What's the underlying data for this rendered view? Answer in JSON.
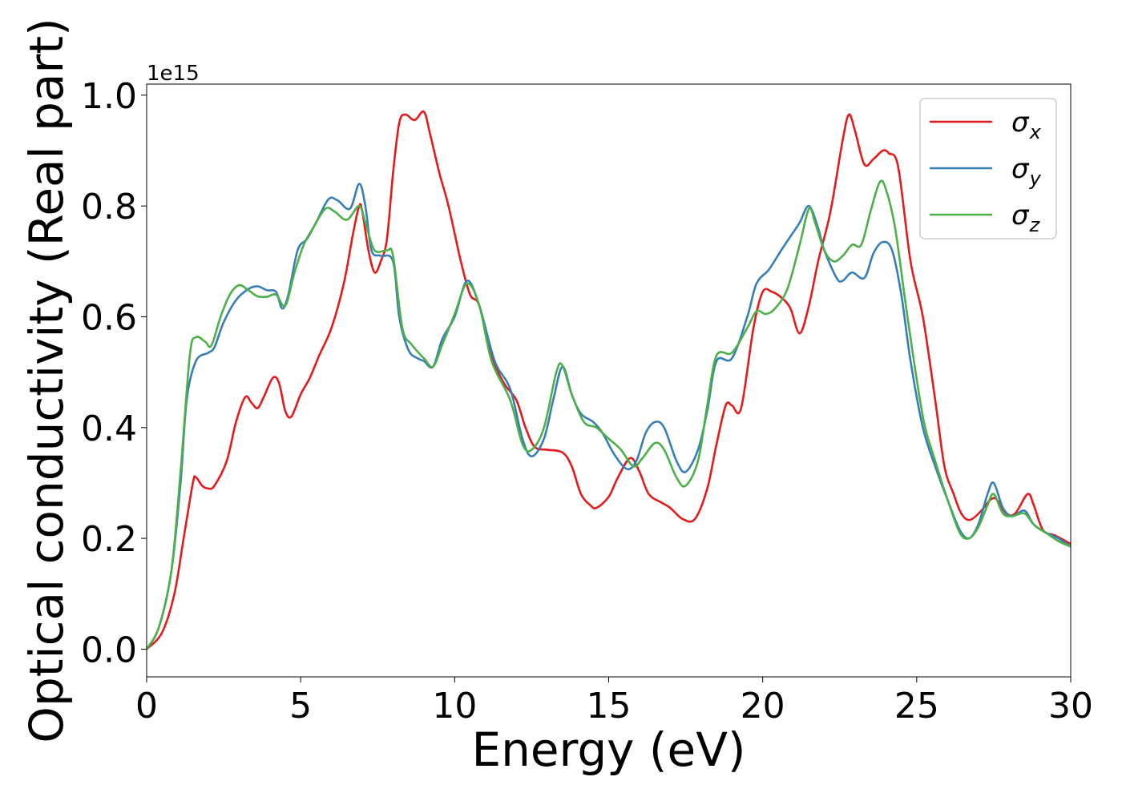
{
  "chart_data": {
    "type": "line",
    "xlabel": "Energy (eV)",
    "ylabel": "Optical conductivity (Real part)",
    "y_offset_label": "1e15",
    "xlim": [
      0,
      30
    ],
    "ylim": [
      -0.05,
      1.02
    ],
    "xticks": [
      0,
      5,
      10,
      15,
      20,
      25,
      30
    ],
    "yticks": [
      0.0,
      0.2,
      0.4,
      0.6,
      0.8,
      1.0
    ],
    "xtick_labels": [
      "0",
      "5",
      "10",
      "15",
      "20",
      "25",
      "30"
    ],
    "ytick_labels": [
      "0.0",
      "0.2",
      "0.4",
      "0.6",
      "0.8",
      "1.0"
    ],
    "grid": false,
    "legend_position": "top-right",
    "series": [
      {
        "name": "σ_x",
        "legend_symbol": "σ",
        "legend_sub": "x",
        "color": "#e41a1c",
        "points": [
          [
            0,
            0
          ],
          [
            0.5,
            0.03
          ],
          [
            0.9,
            0.1
          ],
          [
            1.2,
            0.2
          ],
          [
            1.5,
            0.3
          ],
          [
            1.6,
            0.31
          ],
          [
            1.8,
            0.295
          ],
          [
            2.0,
            0.29
          ],
          [
            2.2,
            0.295
          ],
          [
            2.6,
            0.34
          ],
          [
            2.9,
            0.41
          ],
          [
            3.2,
            0.455
          ],
          [
            3.4,
            0.445
          ],
          [
            3.6,
            0.435
          ],
          [
            3.8,
            0.455
          ],
          [
            4.1,
            0.49
          ],
          [
            4.3,
            0.48
          ],
          [
            4.5,
            0.43
          ],
          [
            4.7,
            0.42
          ],
          [
            5.0,
            0.46
          ],
          [
            5.3,
            0.49
          ],
          [
            5.6,
            0.53
          ],
          [
            6.0,
            0.58
          ],
          [
            6.4,
            0.66
          ],
          [
            6.7,
            0.75
          ],
          [
            6.9,
            0.8
          ],
          [
            7.0,
            0.79
          ],
          [
            7.2,
            0.72
          ],
          [
            7.4,
            0.68
          ],
          [
            7.6,
            0.7
          ],
          [
            7.8,
            0.74
          ],
          [
            8.0,
            0.86
          ],
          [
            8.2,
            0.95
          ],
          [
            8.4,
            0.965
          ],
          [
            8.7,
            0.955
          ],
          [
            9.0,
            0.97
          ],
          [
            9.2,
            0.93
          ],
          [
            9.5,
            0.86
          ],
          [
            9.8,
            0.8
          ],
          [
            10.2,
            0.7
          ],
          [
            10.5,
            0.64
          ],
          [
            10.8,
            0.62
          ],
          [
            11.2,
            0.53
          ],
          [
            11.6,
            0.48
          ],
          [
            12.0,
            0.45
          ],
          [
            12.3,
            0.4
          ],
          [
            12.6,
            0.365
          ],
          [
            13.0,
            0.36
          ],
          [
            13.5,
            0.355
          ],
          [
            13.8,
            0.33
          ],
          [
            14.1,
            0.28
          ],
          [
            14.4,
            0.26
          ],
          [
            14.6,
            0.255
          ],
          [
            15.0,
            0.275
          ],
          [
            15.3,
            0.31
          ],
          [
            15.7,
            0.345
          ],
          [
            16.0,
            0.32
          ],
          [
            16.3,
            0.28
          ],
          [
            16.7,
            0.265
          ],
          [
            17.0,
            0.255
          ],
          [
            17.4,
            0.235
          ],
          [
            17.8,
            0.235
          ],
          [
            18.2,
            0.29
          ],
          [
            18.5,
            0.37
          ],
          [
            18.8,
            0.44
          ],
          [
            19.0,
            0.44
          ],
          [
            19.3,
            0.435
          ],
          [
            19.7,
            0.58
          ],
          [
            20.0,
            0.645
          ],
          [
            20.3,
            0.645
          ],
          [
            20.6,
            0.635
          ],
          [
            20.9,
            0.615
          ],
          [
            21.2,
            0.57
          ],
          [
            21.5,
            0.62
          ],
          [
            21.8,
            0.7
          ],
          [
            22.2,
            0.79
          ],
          [
            22.6,
            0.92
          ],
          [
            22.8,
            0.965
          ],
          [
            23.0,
            0.935
          ],
          [
            23.3,
            0.875
          ],
          [
            23.6,
            0.885
          ],
          [
            23.9,
            0.9
          ],
          [
            24.1,
            0.895
          ],
          [
            24.4,
            0.87
          ],
          [
            24.8,
            0.7
          ],
          [
            25.2,
            0.6
          ],
          [
            25.6,
            0.45
          ],
          [
            25.9,
            0.33
          ],
          [
            26.2,
            0.28
          ],
          [
            26.4,
            0.25
          ],
          [
            26.6,
            0.235
          ],
          [
            26.8,
            0.235
          ],
          [
            27.1,
            0.25
          ],
          [
            27.4,
            0.27
          ],
          [
            27.6,
            0.27
          ],
          [
            27.9,
            0.245
          ],
          [
            28.2,
            0.245
          ],
          [
            28.6,
            0.28
          ],
          [
            28.8,
            0.26
          ],
          [
            29.1,
            0.215
          ],
          [
            29.5,
            0.205
          ],
          [
            30.0,
            0.19
          ]
        ]
      },
      {
        "name": "σ_y",
        "legend_symbol": "σ",
        "legend_sub": "y",
        "color": "#377eb8",
        "points": [
          [
            0,
            0
          ],
          [
            0.4,
            0.04
          ],
          [
            0.8,
            0.14
          ],
          [
            1.1,
            0.3
          ],
          [
            1.3,
            0.45
          ],
          [
            1.6,
            0.52
          ],
          [
            2.0,
            0.535
          ],
          [
            2.2,
            0.545
          ],
          [
            2.5,
            0.59
          ],
          [
            2.9,
            0.63
          ],
          [
            3.3,
            0.65
          ],
          [
            3.6,
            0.655
          ],
          [
            3.9,
            0.648
          ],
          [
            4.2,
            0.645
          ],
          [
            4.4,
            0.615
          ],
          [
            4.6,
            0.64
          ],
          [
            4.9,
            0.72
          ],
          [
            5.2,
            0.74
          ],
          [
            5.5,
            0.77
          ],
          [
            5.9,
            0.812
          ],
          [
            6.2,
            0.81
          ],
          [
            6.6,
            0.795
          ],
          [
            6.9,
            0.84
          ],
          [
            7.1,
            0.8
          ],
          [
            7.3,
            0.72
          ],
          [
            7.6,
            0.71
          ],
          [
            8.0,
            0.7
          ],
          [
            8.2,
            0.6
          ],
          [
            8.5,
            0.54
          ],
          [
            8.8,
            0.525
          ],
          [
            9.0,
            0.52
          ],
          [
            9.3,
            0.51
          ],
          [
            9.6,
            0.56
          ],
          [
            10.0,
            0.6
          ],
          [
            10.4,
            0.665
          ],
          [
            10.8,
            0.62
          ],
          [
            11.3,
            0.52
          ],
          [
            11.8,
            0.47
          ],
          [
            12.2,
            0.38
          ],
          [
            12.5,
            0.348
          ],
          [
            12.9,
            0.38
          ],
          [
            13.2,
            0.45
          ],
          [
            13.5,
            0.51
          ],
          [
            13.8,
            0.46
          ],
          [
            14.1,
            0.425
          ],
          [
            14.5,
            0.41
          ],
          [
            14.8,
            0.39
          ],
          [
            15.2,
            0.35
          ],
          [
            15.6,
            0.325
          ],
          [
            15.9,
            0.34
          ],
          [
            16.2,
            0.39
          ],
          [
            16.5,
            0.41
          ],
          [
            16.8,
            0.4
          ],
          [
            17.2,
            0.34
          ],
          [
            17.5,
            0.32
          ],
          [
            17.9,
            0.36
          ],
          [
            18.2,
            0.43
          ],
          [
            18.5,
            0.52
          ],
          [
            19.0,
            0.525
          ],
          [
            19.5,
            0.6
          ],
          [
            19.8,
            0.66
          ],
          [
            20.2,
            0.685
          ],
          [
            20.6,
            0.72
          ],
          [
            20.9,
            0.745
          ],
          [
            21.2,
            0.77
          ],
          [
            21.5,
            0.8
          ],
          [
            21.8,
            0.76
          ],
          [
            22.0,
            0.72
          ],
          [
            22.4,
            0.67
          ],
          [
            22.6,
            0.665
          ],
          [
            22.9,
            0.68
          ],
          [
            23.3,
            0.67
          ],
          [
            23.6,
            0.715
          ],
          [
            23.9,
            0.735
          ],
          [
            24.2,
            0.72
          ],
          [
            24.5,
            0.64
          ],
          [
            24.8,
            0.52
          ],
          [
            25.2,
            0.4
          ],
          [
            25.6,
            0.33
          ],
          [
            26.0,
            0.27
          ],
          [
            26.4,
            0.215
          ],
          [
            26.7,
            0.2
          ],
          [
            27.0,
            0.225
          ],
          [
            27.3,
            0.28
          ],
          [
            27.5,
            0.3
          ],
          [
            27.8,
            0.255
          ],
          [
            28.1,
            0.24
          ],
          [
            28.5,
            0.25
          ],
          [
            28.8,
            0.225
          ],
          [
            29.2,
            0.21
          ],
          [
            29.6,
            0.2
          ],
          [
            30.0,
            0.185
          ]
        ]
      },
      {
        "name": "σ_z",
        "legend_symbol": "σ",
        "legend_sub": "z",
        "color": "#4daf4a",
        "points": [
          [
            0,
            0
          ],
          [
            0.4,
            0.04
          ],
          [
            0.8,
            0.14
          ],
          [
            1.1,
            0.32
          ],
          [
            1.4,
            0.53
          ],
          [
            1.6,
            0.563
          ],
          [
            1.9,
            0.555
          ],
          [
            2.1,
            0.548
          ],
          [
            2.4,
            0.6
          ],
          [
            2.7,
            0.64
          ],
          [
            3.0,
            0.657
          ],
          [
            3.3,
            0.648
          ],
          [
            3.6,
            0.637
          ],
          [
            3.9,
            0.636
          ],
          [
            4.2,
            0.64
          ],
          [
            4.5,
            0.62
          ],
          [
            4.8,
            0.68
          ],
          [
            5.1,
            0.73
          ],
          [
            5.4,
            0.76
          ],
          [
            5.8,
            0.795
          ],
          [
            6.1,
            0.79
          ],
          [
            6.5,
            0.775
          ],
          [
            6.9,
            0.8
          ],
          [
            7.1,
            0.77
          ],
          [
            7.4,
            0.72
          ],
          [
            7.8,
            0.72
          ],
          [
            8.0,
            0.71
          ],
          [
            8.3,
            0.58
          ],
          [
            8.6,
            0.55
          ],
          [
            9.0,
            0.525
          ],
          [
            9.3,
            0.51
          ],
          [
            9.6,
            0.55
          ],
          [
            10.0,
            0.605
          ],
          [
            10.4,
            0.66
          ],
          [
            10.8,
            0.62
          ],
          [
            11.2,
            0.52
          ],
          [
            11.8,
            0.45
          ],
          [
            12.2,
            0.37
          ],
          [
            12.5,
            0.36
          ],
          [
            12.9,
            0.4
          ],
          [
            13.3,
            0.5
          ],
          [
            13.5,
            0.512
          ],
          [
            13.8,
            0.46
          ],
          [
            14.2,
            0.41
          ],
          [
            14.6,
            0.4
          ],
          [
            15.0,
            0.38
          ],
          [
            15.4,
            0.36
          ],
          [
            15.8,
            0.33
          ],
          [
            16.1,
            0.345
          ],
          [
            16.5,
            0.372
          ],
          [
            16.8,
            0.36
          ],
          [
            17.2,
            0.31
          ],
          [
            17.5,
            0.295
          ],
          [
            17.9,
            0.34
          ],
          [
            18.2,
            0.44
          ],
          [
            18.5,
            0.53
          ],
          [
            19.0,
            0.535
          ],
          [
            19.5,
            0.58
          ],
          [
            19.8,
            0.61
          ],
          [
            20.1,
            0.605
          ],
          [
            20.4,
            0.615
          ],
          [
            20.8,
            0.65
          ],
          [
            21.2,
            0.73
          ],
          [
            21.5,
            0.795
          ],
          [
            21.7,
            0.77
          ],
          [
            22.0,
            0.72
          ],
          [
            22.3,
            0.7
          ],
          [
            22.6,
            0.71
          ],
          [
            22.9,
            0.73
          ],
          [
            23.2,
            0.73
          ],
          [
            23.5,
            0.79
          ],
          [
            23.8,
            0.843
          ],
          [
            24.0,
            0.83
          ],
          [
            24.3,
            0.76
          ],
          [
            24.7,
            0.6
          ],
          [
            25.2,
            0.42
          ],
          [
            25.6,
            0.34
          ],
          [
            26.0,
            0.27
          ],
          [
            26.4,
            0.21
          ],
          [
            26.7,
            0.2
          ],
          [
            27.0,
            0.22
          ],
          [
            27.3,
            0.26
          ],
          [
            27.5,
            0.28
          ],
          [
            27.8,
            0.245
          ],
          [
            28.1,
            0.24
          ],
          [
            28.5,
            0.245
          ],
          [
            28.8,
            0.225
          ],
          [
            29.2,
            0.21
          ],
          [
            29.6,
            0.195
          ],
          [
            30.0,
            0.185
          ]
        ]
      }
    ]
  }
}
